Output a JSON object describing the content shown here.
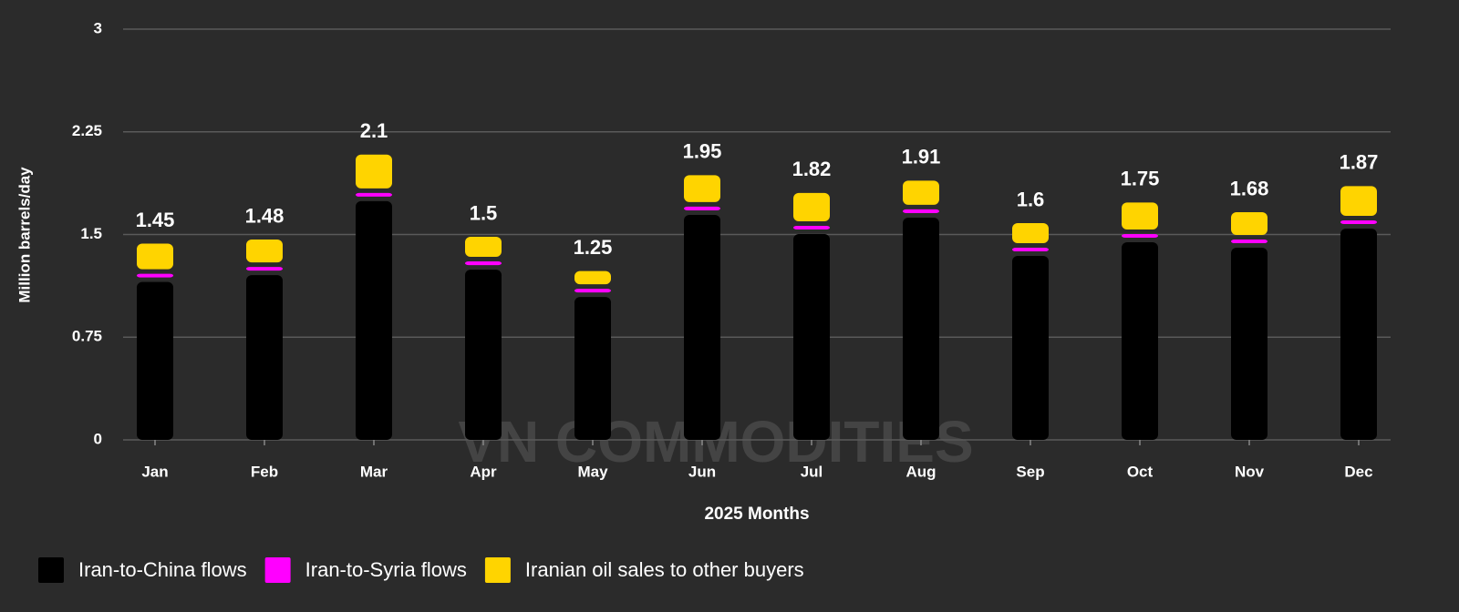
{
  "chart_data": {
    "type": "stacked-bar",
    "watermark": "VN COMMODITIES",
    "xlabel": "2025 Months",
    "ylabel": "Million barrels/day",
    "categories": [
      "Jan",
      "Feb",
      "Mar",
      "Apr",
      "May",
      "Jun",
      "Jul",
      "Aug",
      "Sep",
      "Oct",
      "Nov",
      "Dec"
    ],
    "series": [
      {
        "name": "Iran-to-China flows",
        "color": "#000000",
        "values": [
          1.17,
          1.22,
          1.76,
          1.26,
          1.06,
          1.66,
          1.52,
          1.64,
          1.36,
          1.46,
          1.42,
          1.56
        ]
      },
      {
        "name": "Iran-to-Syria flows",
        "color": "#ff00ff",
        "values": [
          0.06,
          0.06,
          0.06,
          0.06,
          0.06,
          0.06,
          0.06,
          0.06,
          0.06,
          0.06,
          0.06,
          0.06
        ]
      },
      {
        "name": "Iranian oil sales to other buyers",
        "color": "#ffd400",
        "values": [
          0.22,
          0.2,
          0.28,
          0.18,
          0.13,
          0.23,
          0.24,
          0.21,
          0.18,
          0.23,
          0.2,
          0.25
        ]
      }
    ],
    "totals": [
      1.45,
      1.48,
      2.1,
      1.5,
      1.25,
      1.95,
      1.82,
      1.91,
      1.6,
      1.75,
      1.68,
      1.87
    ],
    "ylim": [
      0,
      3
    ],
    "yticks": [
      0,
      0.75,
      1.5,
      2.25,
      3
    ],
    "grid": true
  }
}
